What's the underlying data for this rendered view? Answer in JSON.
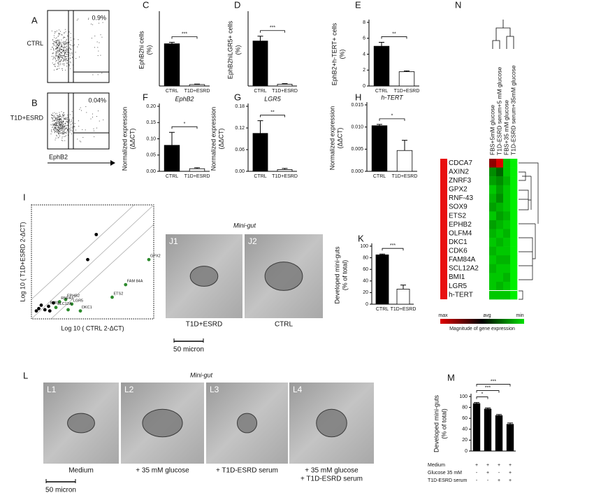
{
  "flow": {
    "panels": [
      {
        "letter": "A",
        "label": "CTRL",
        "gate_percent": "0.9%"
      },
      {
        "letter": "B",
        "label": "T1D+ESRD",
        "gate_percent": "0.04%"
      }
    ],
    "axis_label": "EphB2"
  },
  "chart_data": [
    {
      "type": "bar",
      "letter": "C",
      "ylabel": [
        "EphB2hi cells",
        "(%)"
      ],
      "categories": [
        "CTRL",
        "T1D+ESRD"
      ],
      "values": [
        0.88,
        0.03
      ],
      "errors": [
        0.03,
        0.01
      ],
      "colors": [
        "#000000",
        "#ffffff"
      ],
      "ylim": [
        0,
        1.5
      ],
      "significance": [
        "***"
      ]
    },
    {
      "type": "bar",
      "letter": "D",
      "ylabel": [
        "EphB2hiLGR5+ cells",
        "(%)"
      ],
      "categories": [
        "CTRL",
        "T1D+ESRD"
      ],
      "values": [
        0.75,
        0.03
      ],
      "errors": [
        0.08,
        0.01
      ],
      "colors": [
        "#000000",
        "#ffffff"
      ],
      "ylim": [
        0,
        1.2
      ],
      "significance": [
        "***"
      ]
    },
    {
      "type": "bar",
      "letter": "E",
      "ylabel": [
        "EphB2+h-TERT+ cells",
        "(%)"
      ],
      "categories": [
        "CTRL",
        "T1D+ESRD"
      ],
      "values": [
        5.0,
        1.8
      ],
      "errors": [
        0.5,
        0.1
      ],
      "colors": [
        "#000000",
        "#ffffff"
      ],
      "ylim": [
        0,
        8
      ],
      "yticks": [
        0,
        2,
        4,
        6,
        8
      ],
      "significance": [
        "**"
      ]
    },
    {
      "type": "bar",
      "letter": "F",
      "title": "EphB2",
      "ylabel": [
        "Normalized expression",
        "(ΔΔCT)"
      ],
      "categories": [
        "CTRL",
        "T1D+ESRD"
      ],
      "values": [
        0.08,
        0.008
      ],
      "errors": [
        0.04,
        0.003
      ],
      "colors": [
        "#000000",
        "#ffffff"
      ],
      "ylim": [
        0,
        0.2
      ],
      "yticks": [
        {
          "value": 0,
          "label": "0.00"
        },
        {
          "value": 0.05,
          "label": "0.05"
        },
        {
          "value": 0.1,
          "label": "0.10"
        },
        {
          "value": 0.15,
          "label": "0.15"
        },
        {
          "value": 0.2,
          "label": "0.20"
        }
      ],
      "significance": [
        "*"
      ]
    },
    {
      "type": "bar",
      "letter": "G",
      "title": "LGR5",
      "ylabel": [
        "Normalized expression",
        "(ΔΔCT)"
      ],
      "categories": [
        "CTRL",
        "T1D+ESRD"
      ],
      "values": [
        0.105,
        0.005
      ],
      "errors": [
        0.035,
        0.003
      ],
      "colors": [
        "#000000",
        "#ffffff"
      ],
      "ylim": [
        0,
        0.18
      ],
      "yticks": [
        {
          "value": 0,
          "label": "0.00"
        },
        {
          "value": 0.06,
          "label": "0.06"
        },
        {
          "value": 0.12,
          "label": "0.12"
        },
        {
          "value": 0.18,
          "label": "0.18"
        }
      ],
      "significance": [
        "**"
      ]
    },
    {
      "type": "bar",
      "letter": "H",
      "title": "h-TERT",
      "ylabel": [
        "Normalized expression",
        "(ΔΔCT)"
      ],
      "categories": [
        "CTRL",
        "T1D+ESRD"
      ],
      "values": [
        0.0103,
        0.0047
      ],
      "errors": [
        0.0003,
        0.0023
      ],
      "colors": [
        "#000000",
        "#ffffff"
      ],
      "ylim": [
        0,
        0.015
      ],
      "yticks": [
        {
          "value": 0,
          "label": "0.000"
        },
        {
          "value": 0.005,
          "label": "0.005"
        },
        {
          "value": 0.01,
          "label": "0.010"
        },
        {
          "value": 0.015,
          "label": "0.015"
        }
      ],
      "significance": [
        "*"
      ]
    },
    {
      "type": "scatter",
      "letter": "I",
      "xlabel": "Log 10 ( CTRL 2-ΔCT)",
      "ylabel": "Log 10 ( T1D+ESRD 2-ΔCT)",
      "xlim": [
        0,
        10
      ],
      "ylim": [
        0,
        10
      ],
      "x": [
        5.3,
        4.6,
        0.4,
        0.8,
        1.1,
        1.5,
        1.8,
        0.6,
        9.6,
        7.7,
        6.6,
        2.8,
        3.3,
        2.3,
        2.0,
        3.0,
        4.0,
        1.4
      ],
      "y": [
        7.4,
        5.2,
        0.7,
        1.2,
        0.8,
        0.7,
        1.4,
        0.9,
        5.2,
        3.0,
        1.9,
        1.7,
        1.3,
        1.5,
        1.0,
        0.8,
        0.7,
        1.1
      ],
      "point_colors": [
        "#000000",
        "#000000",
        "#000000",
        "#000000",
        "#000000",
        "#000000",
        "#000000",
        "#000000",
        "#2e8b2e",
        "#2e8b2e",
        "#2e8b2e",
        "#2e8b2e",
        "#2e8b2e",
        "#2e8b2e",
        "#2e8b2e",
        "#2e8b2e",
        "#2e8b2e",
        "#000000"
      ],
      "point_labels": [
        null,
        null,
        null,
        null,
        null,
        null,
        null,
        null,
        "GPX2",
        "FAM 84A",
        "ETS2",
        "EPHB2",
        "LGR5",
        "RNF43",
        "SLC12A",
        null,
        "DKC1",
        "BMI1"
      ]
    },
    {
      "type": "bar",
      "letter": "K",
      "ylabel": [
        "Developed mini-guts",
        "(% of total)"
      ],
      "categories": [
        "CTRL",
        "T1D+ESRD"
      ],
      "values": [
        85,
        26
      ],
      "errors": [
        1.5,
        7
      ],
      "colors": [
        "#000000",
        "#ffffff"
      ],
      "ylim": [
        0,
        100
      ],
      "yticks": [
        0,
        20,
        40,
        60,
        80,
        100
      ],
      "significance": [
        "***"
      ]
    },
    {
      "type": "bar",
      "letter": "M",
      "ylabel": [
        "Developed mini-guts",
        "(% of total)"
      ],
      "categories": [
        null,
        null,
        null,
        null
      ],
      "values": [
        87,
        77,
        65,
        49
      ],
      "errors": [
        2,
        2,
        2,
        2.5
      ],
      "colors": [
        "#000000",
        "#000000",
        "#000000",
        "#000000"
      ],
      "ylim": [
        0,
        100
      ],
      "yticks": [
        0,
        20,
        40,
        60,
        80,
        100
      ],
      "significance": [
        "*",
        "***",
        "***"
      ],
      "conditions": [
        {
          "name": "Medium",
          "signs": [
            "+",
            "+",
            "+",
            "+"
          ]
        },
        {
          "name": "Glucose 35 mM",
          "signs": [
            "-",
            "+",
            "-",
            "+"
          ]
        },
        {
          "name": "T1D-ESRD serum",
          "signs": [
            "-",
            "-",
            "+",
            "+"
          ]
        }
      ]
    },
    {
      "type": "heatmap",
      "letter": "N",
      "columns": [
        "FBS+5mM glucose",
        "T1D-ESRD serum+5 mM glucose",
        "FBS+35 mM glucose",
        "T1D-ESRD serum+35mM glucose"
      ],
      "rows": [
        "CDCA7",
        "AXIN2",
        "ZNRF3",
        "GPX2",
        "RNF-43",
        "SOX9",
        "ETS2",
        "EPHB2",
        "OLFM4",
        "DKC1",
        "CDK6",
        "FAM84A",
        "SCL12A2",
        "BMI1",
        "LGR5",
        "h-TERT"
      ],
      "values": [
        [
          0.5,
          0.9,
          -0.8,
          -1
        ],
        [
          -0.5,
          -0.3,
          -0.8,
          -1
        ],
        [
          -0.6,
          -0.5,
          -0.7,
          -1
        ],
        [
          -0.8,
          -0.6,
          -0.8,
          -1
        ],
        [
          -0.7,
          -0.5,
          -0.8,
          -1
        ],
        [
          -0.6,
          -0.7,
          -0.8,
          -1
        ],
        [
          -0.8,
          -0.6,
          -0.7,
          -1
        ],
        [
          -0.6,
          -0.7,
          -0.8,
          -1
        ],
        [
          -0.7,
          -0.8,
          -0.7,
          -1
        ],
        [
          -0.8,
          -0.7,
          -0.8,
          -1
        ],
        [
          -0.7,
          -0.8,
          -0.8,
          -1
        ],
        [
          -0.8,
          -0.7,
          -0.7,
          -1
        ],
        [
          -0.7,
          -0.8,
          -0.8,
          -1
        ],
        [
          -0.8,
          -0.8,
          -0.7,
          -1
        ],
        [
          -0.8,
          -0.7,
          -0.8,
          -1
        ],
        [
          -0.8,
          -0.8,
          -0.8,
          -1
        ]
      ],
      "legend": [
        "max",
        "avg",
        "min"
      ],
      "legend_title": "Magnitude of gene expression"
    }
  ],
  "mini_gut_j": {
    "title": "Mini-gut",
    "images": [
      {
        "label": "J1",
        "caption": [
          "T1D+ESRD"
        ]
      },
      {
        "label": "J2",
        "caption": [
          "CTRL"
        ]
      }
    ],
    "scale": "50 micron"
  },
  "mini_gut_l": {
    "letter": "L",
    "title": "Mini-gut",
    "images": [
      {
        "label": "L1",
        "caption": [
          "Medium"
        ]
      },
      {
        "label": "L2",
        "caption": [
          "+ 35 mM glucose"
        ]
      },
      {
        "label": "L3",
        "caption": [
          "+ T1D-ESRD serum"
        ]
      },
      {
        "label": "L4",
        "caption": [
          "+ 35 mM glucose",
          "+ T1D-ESRD serum"
        ]
      }
    ],
    "scale": "50 micron"
  }
}
